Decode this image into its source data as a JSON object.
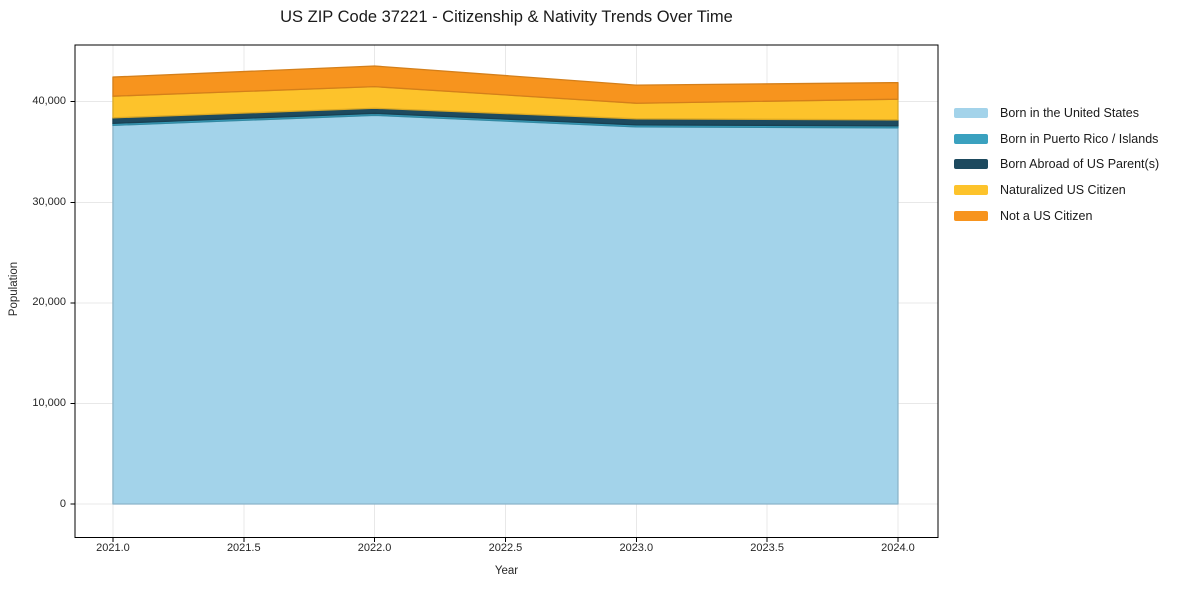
{
  "chart_data": {
    "type": "area",
    "stacked": true,
    "title": "US ZIP Code 37221 - Citizenship & Nativity Trends Over Time",
    "xlabel": "Year",
    "ylabel": "Population",
    "x": [
      2021,
      2022,
      2023,
      2024
    ],
    "series": [
      {
        "name": "Born in the United States",
        "color": "#A3D3EA",
        "values": [
          37650,
          38650,
          37500,
          37400
        ]
      },
      {
        "name": "Born in Puerto Rico / Islands",
        "color": "#3AA1BF",
        "values": [
          200,
          200,
          200,
          200
        ]
      },
      {
        "name": "Born Abroad of US Parent(s)",
        "color": "#1D4A5F",
        "values": [
          550,
          500,
          600,
          600
        ]
      },
      {
        "name": "Naturalized US Citizen",
        "color": "#FDC32B",
        "values": [
          2150,
          2150,
          1550,
          2050
        ]
      },
      {
        "name": "Not a US Citizen",
        "color": "#F7941E",
        "values": [
          1900,
          2050,
          1800,
          1650
        ]
      }
    ],
    "totals": [
      42450,
      43550,
      41650,
      41900
    ],
    "xticks": {
      "values": [
        2021.0,
        2021.5,
        2022.0,
        2022.5,
        2023.0,
        2023.5,
        2024.0
      ],
      "labels": [
        "2021.0",
        "2021.5",
        "2022.0",
        "2022.5",
        "2023.0",
        "2023.5",
        "2024.0"
      ]
    },
    "yticks": {
      "values": [
        0,
        10000,
        20000,
        30000,
        40000
      ],
      "labels": [
        "0",
        "10,000",
        "20,000",
        "30,000",
        "40,000"
      ]
    },
    "xlim": [
      2020.855,
      2024.153
    ],
    "ylim": [
      -3330,
      45640
    ],
    "grid": true,
    "legend_position": "right-outside",
    "colors": {
      "grid": "#E8E8E8",
      "spine": "#000000",
      "text": "#1A1A1A"
    }
  }
}
